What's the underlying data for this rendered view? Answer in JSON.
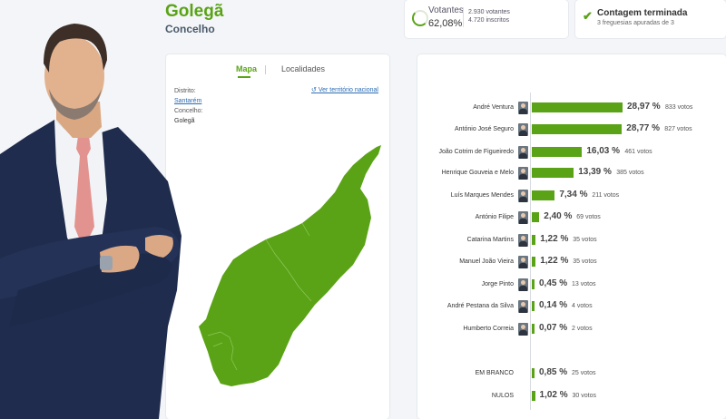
{
  "header": {
    "title": "Golegã",
    "subtitle": "Concelho"
  },
  "turnout": {
    "label": "Votantes",
    "percent": "62,08%",
    "voters": "2.930 votantes",
    "registered": "4.720 inscritos",
    "ring_fraction": 0.6208
  },
  "counting": {
    "title": "Contagem terminada",
    "detail": "3 freguesias apuradas de 3"
  },
  "map_panel": {
    "tabs": [
      "Mapa",
      "Localidades"
    ],
    "district_label": "Distrito:",
    "district_value": "Santarém",
    "municipality_label": "Concelho:",
    "municipality_value": "Golegã",
    "national_link": "Ver território nacional",
    "map_color": "#5aa316"
  },
  "candidates": [
    {
      "name": "André Ventura",
      "percent": "28,97 %",
      "votes": "833 votos",
      "share": 28.97
    },
    {
      "name": "António José Seguro",
      "percent": "28,77 %",
      "votes": "827 votos",
      "share": 28.77
    },
    {
      "name": "João Cotrim de Figueiredo",
      "percent": "16,03 %",
      "votes": "461 votos",
      "share": 16.03
    },
    {
      "name": "Henrique Gouveia e Melo",
      "percent": "13,39 %",
      "votes": "385 votos",
      "share": 13.39
    },
    {
      "name": "Luís Marques Mendes",
      "percent": "7,34 %",
      "votes": "211 votos",
      "share": 7.34
    },
    {
      "name": "António Filipe",
      "percent": "2,40 %",
      "votes": "69 votos",
      "share": 2.4
    },
    {
      "name": "Catarina Martins",
      "percent": "1,22 %",
      "votes": "35 votos",
      "share": 1.22
    },
    {
      "name": "Manuel João Vieira",
      "percent": "1,22 %",
      "votes": "35 votos",
      "share": 1.22
    },
    {
      "name": "Jorge Pinto",
      "percent": "0,45 %",
      "votes": "13 votos",
      "share": 0.45
    },
    {
      "name": "André Pestana da Silva",
      "percent": "0,14 %",
      "votes": "4 votos",
      "share": 0.14
    },
    {
      "name": "Humberto Correia",
      "percent": "0,07 %",
      "votes": "2 votos",
      "share": 0.07
    }
  ],
  "blank_null": [
    {
      "name": "EM BRANCO",
      "percent": "0,85 %",
      "votes": "25 votos",
      "share": 0.85
    },
    {
      "name": "NULOS",
      "percent": "1,02 %",
      "votes": "30 votos",
      "share": 1.02
    }
  ],
  "accent_color": "#5aa316"
}
